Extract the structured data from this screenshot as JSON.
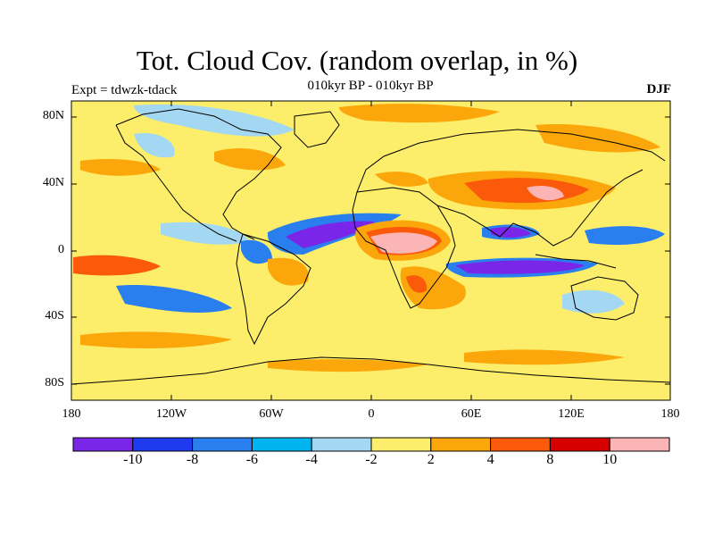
{
  "title": "Tot. Cloud Cov. (random overlap, in %)",
  "subtitle": "010kyr BP - 010kyr BP",
  "expt_label": "Expt = tdwzk-tdack",
  "season": "DJF",
  "lat_labels": [
    "80N",
    "40N",
    "0",
    "40S",
    "80S"
  ],
  "lon_labels": [
    "180",
    "120W",
    "60W",
    "0",
    "60E",
    "120E",
    "180"
  ],
  "colorbar": {
    "levels": [
      "-10",
      "-8",
      "-6",
      "-4",
      "-2",
      "2",
      "4",
      "8",
      "10"
    ],
    "colors": [
      "#7a26e8",
      "#1f3bef",
      "#2a7fef",
      "#00b4f0",
      "#a4d8f2",
      "#fcee6a",
      "#fba70b",
      "#fb5a0b",
      "#d70000",
      "#fbb5b5"
    ]
  },
  "colors": {
    "background": "#fcee6a",
    "coastline": "#000000"
  }
}
